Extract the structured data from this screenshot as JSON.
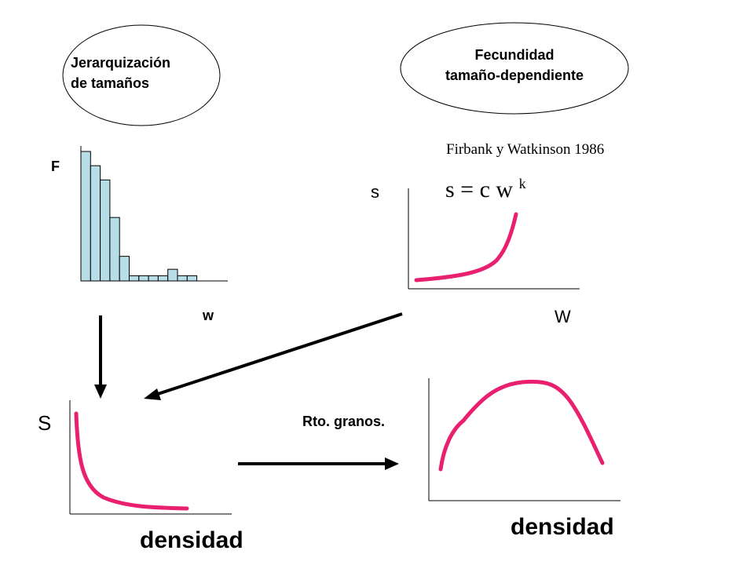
{
  "ellipses": {
    "left": {
      "line1": "Jerarquización",
      "line2": "de tamaños"
    },
    "right": {
      "line1": "Fecundidad",
      "line2": "tamaño-dependiente"
    }
  },
  "histogram": {
    "ylabel": "F",
    "xlabel": "w",
    "values": [
      100,
      89,
      78,
      49,
      19,
      4,
      4,
      4,
      4,
      9,
      4,
      4
    ]
  },
  "fecundity_plot": {
    "citation": "Firbank y Watkinson 1986",
    "formula_base": "s = c w",
    "formula_exp": "k",
    "ylabel": "s",
    "xlabel": "W"
  },
  "survival_plot": {
    "ylabel": "S",
    "xlabel": "densidad"
  },
  "yield_plot": {
    "ylabel": "Rto. granos.",
    "xlabel": "densidad"
  },
  "colors": {
    "curve": "#e8206f",
    "bar_fill": "#b7dde6",
    "axis": "#000000"
  }
}
